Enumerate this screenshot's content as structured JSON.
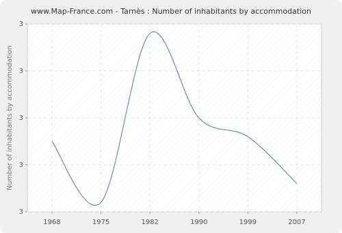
{
  "chart_data": {
    "type": "line",
    "title": "www.Map-France.com - Tarnès : Number of inhabitants by accommodation",
    "y_label": "Number of inhabitants by accommodation",
    "categories": [
      "1968",
      "1975",
      "1982",
      "1990",
      "1999",
      "2007"
    ],
    "series": [
      {
        "name": "Tarnès",
        "color": "#4a7aab",
        "values": [
          2.75,
          2.62,
          2.98,
          2.8,
          2.76,
          2.66
        ]
      }
    ],
    "ylim": [
      2.6,
      3.0
    ],
    "yticks": [
      {
        "value": 2.6,
        "label": "3"
      },
      {
        "value": 2.7,
        "label": "3"
      },
      {
        "value": 2.8,
        "label": "3"
      },
      {
        "value": 2.9,
        "label": "3"
      },
      {
        "value": 3.0,
        "label": "3"
      }
    ],
    "grid": true
  }
}
